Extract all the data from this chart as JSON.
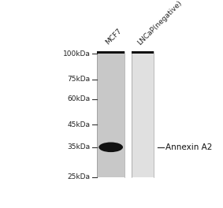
{
  "background_color": "#ffffff",
  "lane1_label": "MCF7",
  "lane2_label": "LNCaP(negative)",
  "marker_positions": [
    100,
    75,
    60,
    45,
    35,
    25
  ],
  "band_annotation": "Annexin A2",
  "band_kda": 35,
  "lane1_color": "#c8c8c8",
  "lane2_color": "#e0e0e0",
  "band_color": "#111111",
  "label_fontsize": 6.5,
  "annotation_fontsize": 7.5,
  "tick_color": "#333333",
  "fig_width": 2.83,
  "fig_height": 2.64,
  "dpi": 100
}
